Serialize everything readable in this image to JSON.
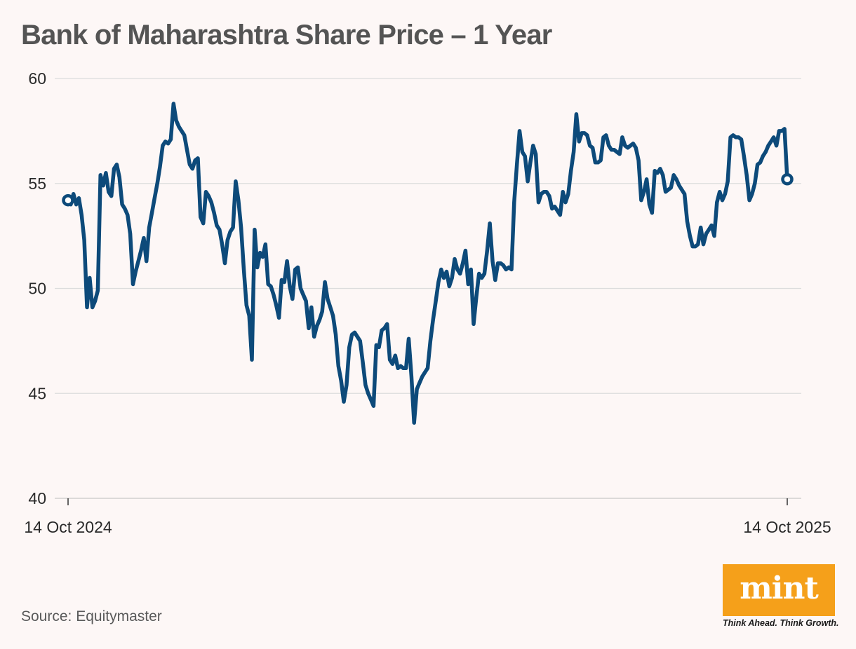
{
  "title": "Bank of Maharashtra Share Price – 1 Year",
  "source": "Source: Equitymaster",
  "brand": {
    "logo_text": "mint",
    "tagline": "Think Ahead. Think Growth.",
    "color": "#f5a01a"
  },
  "colors": {
    "line": "#0d4a7a",
    "grid": "#dcdcdc",
    "background": "#fdf7f6"
  },
  "chart_data": {
    "type": "line",
    "title": "Bank of Maharashtra Share Price – 1 Year",
    "xlabel": "",
    "ylabel": "",
    "ylim": [
      40,
      60
    ],
    "yticks": [
      "40",
      "45",
      "50",
      "55",
      "60"
    ],
    "x_start_label": "14 Oct 2024",
    "x_end_label": "14 Oct 2025",
    "grid": true,
    "series": [
      {
        "name": "Share Price",
        "values": [
          54.2,
          54.0,
          54.5,
          54.0,
          54.3,
          53.5,
          52.3,
          49.1,
          50.5,
          49.1,
          49.4,
          49.9,
          55.4,
          54.9,
          55.5,
          54.6,
          54.4,
          55.7,
          55.9,
          55.3,
          54.0,
          53.8,
          53.5,
          52.6,
          50.2,
          50.8,
          51.3,
          51.8,
          52.4,
          51.3,
          52.9,
          53.6,
          54.3,
          55.0,
          55.8,
          56.8,
          57.0,
          56.9,
          57.1,
          58.8,
          58.0,
          57.7,
          57.5,
          57.3,
          56.6,
          55.9,
          55.7,
          56.1,
          56.2,
          53.4,
          53.1,
          54.6,
          54.4,
          54.1,
          53.6,
          53.0,
          52.8,
          52.1,
          51.2,
          52.3,
          52.7,
          52.9,
          55.1,
          54.2,
          52.9,
          50.9,
          49.2,
          48.7,
          46.6,
          52.8,
          51.0,
          51.7,
          51.5,
          52.1,
          50.2,
          50.1,
          49.7,
          49.2,
          48.6,
          50.4,
          50.3,
          51.3,
          50.1,
          49.5,
          50.9,
          51.0,
          50.0,
          49.7,
          49.4,
          48.1,
          49.1,
          47.7,
          48.2,
          48.5,
          48.9,
          50.3,
          49.5,
          49.1,
          48.7,
          47.8,
          46.3,
          45.6,
          44.6,
          45.4,
          47.2,
          47.8,
          47.9,
          47.7,
          47.5,
          46.5,
          45.4,
          45.0,
          44.7,
          44.4,
          47.3,
          47.2,
          48.0,
          48.1,
          48.3,
          46.6,
          46.4,
          46.8,
          46.2,
          46.3,
          46.2,
          46.2,
          47.6,
          45.8,
          43.6,
          45.2,
          45.5,
          45.8,
          46.0,
          46.2,
          47.5,
          48.5,
          49.4,
          50.3,
          50.9,
          50.5,
          50.8,
          50.1,
          50.5,
          51.4,
          50.9,
          50.7,
          51.2,
          51.8,
          50.2,
          50.9,
          48.3,
          49.6,
          50.7,
          50.5,
          50.7,
          51.8,
          53.1,
          51.3,
          50.4,
          51.2,
          51.2,
          51.1,
          50.9,
          51.0,
          50.9,
          54.1,
          55.9,
          57.5,
          56.5,
          56.3,
          55.1,
          56.0,
          56.8,
          56.4,
          54.1,
          54.5,
          54.6,
          54.6,
          54.4,
          53.8,
          53.9,
          53.7,
          53.5,
          54.6,
          54.1,
          54.5,
          55.6,
          56.5,
          58.3,
          57.0,
          57.4,
          57.4,
          57.3,
          56.8,
          56.7,
          56.0,
          56.0,
          56.1,
          57.2,
          57.3,
          56.8,
          56.6,
          56.6,
          56.5,
          56.4,
          57.2,
          56.8,
          56.7,
          56.8,
          56.9,
          56.7,
          56.1,
          54.2,
          54.6,
          55.2,
          54.0,
          53.6,
          55.6,
          55.5,
          55.7,
          55.4,
          54.6,
          54.7,
          54.8,
          55.4,
          55.2,
          54.9,
          54.7,
          54.5,
          53.2,
          52.5,
          52.0,
          52.0,
          52.1,
          52.9,
          52.1,
          52.6,
          52.8,
          53.0,
          52.5,
          54.1,
          54.6,
          54.2,
          54.5,
          55.1,
          57.2,
          57.3,
          57.2,
          57.2,
          57.1,
          56.3,
          55.4,
          54.2,
          54.5,
          55.0,
          55.9,
          56.0,
          56.3,
          56.5,
          56.8,
          57.0,
          57.2,
          56.8,
          57.5,
          57.5,
          57.6,
          55.2
        ]
      }
    ]
  }
}
